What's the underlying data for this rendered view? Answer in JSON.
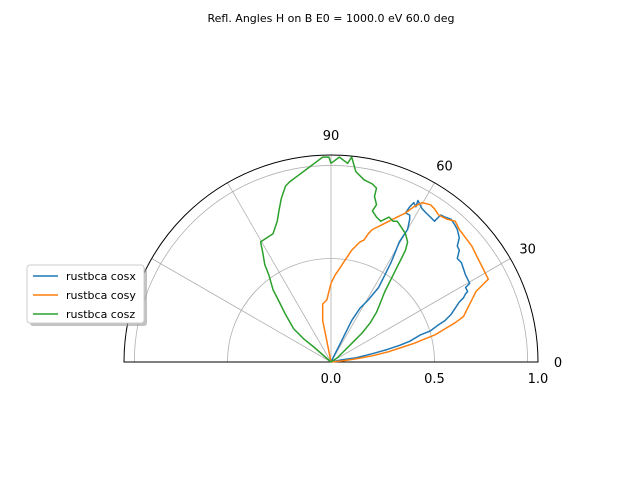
{
  "chart_data": {
    "type": "polar-line",
    "title": "Refl. Angles H on B E0 = 1000.0 eV 60.0 deg",
    "theta_range_deg": [
      0,
      180
    ],
    "r_range": [
      0,
      1.0
    ],
    "angle_ticks": [
      "0",
      "30",
      "60",
      "90"
    ],
    "angle_tick_values": [
      0,
      30,
      60,
      90
    ],
    "radial_ticks": [
      "0.0",
      "0.5",
      "1.0"
    ],
    "radial_tick_values": [
      0.0,
      0.5,
      1.0
    ],
    "grid": true,
    "legend_position": "left",
    "series": [
      {
        "name": "rustbca cosx",
        "color": "#1f77b4",
        "points": [
          [
            0.0,
            0.0
          ],
          [
            0.06,
            0.12
          ],
          [
            0.1,
            0.2
          ],
          [
            0.14,
            0.26
          ],
          [
            0.18,
            0.3
          ],
          [
            0.23,
            0.36
          ],
          [
            0.26,
            0.42
          ],
          [
            0.29,
            0.48
          ],
          [
            0.31,
            0.53
          ],
          [
            0.33,
            0.58
          ],
          [
            0.35,
            0.61
          ],
          [
            0.37,
            0.64
          ],
          [
            0.38,
            0.69
          ],
          [
            0.38,
            0.71
          ],
          [
            0.36,
            0.72
          ],
          [
            0.38,
            0.75
          ],
          [
            0.4,
            0.77
          ],
          [
            0.41,
            0.75
          ],
          [
            0.42,
            0.78
          ],
          [
            0.43,
            0.76
          ],
          [
            0.44,
            0.74
          ],
          [
            0.46,
            0.72
          ],
          [
            0.48,
            0.7
          ],
          [
            0.5,
            0.68
          ],
          [
            0.53,
            0.71
          ],
          [
            0.55,
            0.7
          ],
          [
            0.58,
            0.69
          ],
          [
            0.6,
            0.66
          ],
          [
            0.61,
            0.64
          ],
          [
            0.62,
            0.6
          ],
          [
            0.61,
            0.56
          ],
          [
            0.62,
            0.54
          ],
          [
            0.61,
            0.5
          ],
          [
            0.63,
            0.48
          ],
          [
            0.64,
            0.45
          ],
          [
            0.65,
            0.42
          ],
          [
            0.66,
            0.4
          ],
          [
            0.67,
            0.38
          ],
          [
            0.65,
            0.36
          ],
          [
            0.66,
            0.34
          ],
          [
            0.65,
            0.33
          ],
          [
            0.64,
            0.31
          ],
          [
            0.62,
            0.29
          ],
          [
            0.6,
            0.26
          ],
          [
            0.58,
            0.23
          ],
          [
            0.55,
            0.2
          ],
          [
            0.52,
            0.18
          ],
          [
            0.48,
            0.15
          ],
          [
            0.43,
            0.13
          ],
          [
            0.38,
            0.1
          ],
          [
            0.33,
            0.08
          ],
          [
            0.27,
            0.06
          ],
          [
            0.2,
            0.04
          ],
          [
            0.12,
            0.02
          ],
          [
            0.05,
            0.01
          ],
          [
            0.0,
            0.0
          ]
        ]
      },
      {
        "name": "rustbca cosy",
        "color": "#ff7f0e",
        "points": [
          [
            0.0,
            0.0
          ],
          [
            -0.02,
            0.1
          ],
          [
            -0.04,
            0.2
          ],
          [
            -0.04,
            0.28
          ],
          [
            -0.02,
            0.3
          ],
          [
            -0.01,
            0.34
          ],
          [
            0.0,
            0.38
          ],
          [
            0.02,
            0.42
          ],
          [
            0.04,
            0.45
          ],
          [
            0.06,
            0.48
          ],
          [
            0.08,
            0.51
          ],
          [
            0.1,
            0.54
          ],
          [
            0.12,
            0.56
          ],
          [
            0.14,
            0.58
          ],
          [
            0.16,
            0.59
          ],
          [
            0.18,
            0.62
          ],
          [
            0.2,
            0.64
          ],
          [
            0.24,
            0.66
          ],
          [
            0.28,
            0.68
          ],
          [
            0.32,
            0.7
          ],
          [
            0.36,
            0.72
          ],
          [
            0.4,
            0.75
          ],
          [
            0.44,
            0.77
          ],
          [
            0.48,
            0.76
          ],
          [
            0.5,
            0.74
          ],
          [
            0.52,
            0.71
          ],
          [
            0.56,
            0.69
          ],
          [
            0.6,
            0.68
          ],
          [
            0.62,
            0.64
          ],
          [
            0.65,
            0.6
          ],
          [
            0.68,
            0.56
          ],
          [
            0.7,
            0.52
          ],
          [
            0.72,
            0.48
          ],
          [
            0.74,
            0.44
          ],
          [
            0.76,
            0.4
          ],
          [
            0.73,
            0.37
          ],
          [
            0.7,
            0.34
          ],
          [
            0.68,
            0.3
          ],
          [
            0.66,
            0.26
          ],
          [
            0.64,
            0.22
          ],
          [
            0.6,
            0.19
          ],
          [
            0.55,
            0.16
          ],
          [
            0.5,
            0.13
          ],
          [
            0.45,
            0.11
          ],
          [
            0.4,
            0.09
          ],
          [
            0.34,
            0.07
          ],
          [
            0.28,
            0.05
          ],
          [
            0.2,
            0.03
          ],
          [
            0.12,
            0.015
          ],
          [
            0.05,
            0.005
          ],
          [
            0.0,
            0.0
          ]
        ]
      },
      {
        "name": "rustbca cosz",
        "color": "#2ca02c",
        "points": [
          [
            0.0,
            0.0
          ],
          [
            -0.08,
            0.07
          ],
          [
            -0.13,
            0.11
          ],
          [
            -0.18,
            0.16
          ],
          [
            -0.22,
            0.23
          ],
          [
            -0.25,
            0.29
          ],
          [
            -0.28,
            0.35
          ],
          [
            -0.3,
            0.42
          ],
          [
            -0.32,
            0.47
          ],
          [
            -0.33,
            0.53
          ],
          [
            -0.34,
            0.58
          ],
          [
            -0.28,
            0.62
          ],
          [
            -0.26,
            0.68
          ],
          [
            -0.25,
            0.74
          ],
          [
            -0.24,
            0.79
          ],
          [
            -0.22,
            0.85
          ],
          [
            -0.2,
            0.87
          ],
          [
            -0.16,
            0.9
          ],
          [
            -0.12,
            0.93
          ],
          [
            -0.08,
            0.96
          ],
          [
            -0.04,
            0.99
          ],
          [
            -0.01,
            0.99
          ],
          [
            0.0,
            0.96
          ],
          [
            0.04,
            0.99
          ],
          [
            0.08,
            0.96
          ],
          [
            0.1,
            0.99
          ],
          [
            0.12,
            0.92
          ],
          [
            0.16,
            0.88
          ],
          [
            0.2,
            0.86
          ],
          [
            0.22,
            0.84
          ],
          [
            0.21,
            0.8
          ],
          [
            0.22,
            0.76
          ],
          [
            0.2,
            0.73
          ],
          [
            0.22,
            0.7
          ],
          [
            0.24,
            0.68
          ],
          [
            0.28,
            0.7
          ],
          [
            0.3,
            0.68
          ],
          [
            0.32,
            0.68
          ],
          [
            0.34,
            0.65
          ],
          [
            0.36,
            0.62
          ],
          [
            0.37,
            0.58
          ],
          [
            0.36,
            0.54
          ],
          [
            0.34,
            0.5
          ],
          [
            0.32,
            0.46
          ],
          [
            0.3,
            0.42
          ],
          [
            0.28,
            0.38
          ],
          [
            0.26,
            0.34
          ],
          [
            0.24,
            0.29
          ],
          [
            0.22,
            0.24
          ],
          [
            0.19,
            0.19
          ],
          [
            0.15,
            0.14
          ],
          [
            0.11,
            0.1
          ],
          [
            0.07,
            0.06
          ],
          [
            0.03,
            0.02
          ],
          [
            0.0,
            0.0
          ]
        ]
      }
    ]
  }
}
